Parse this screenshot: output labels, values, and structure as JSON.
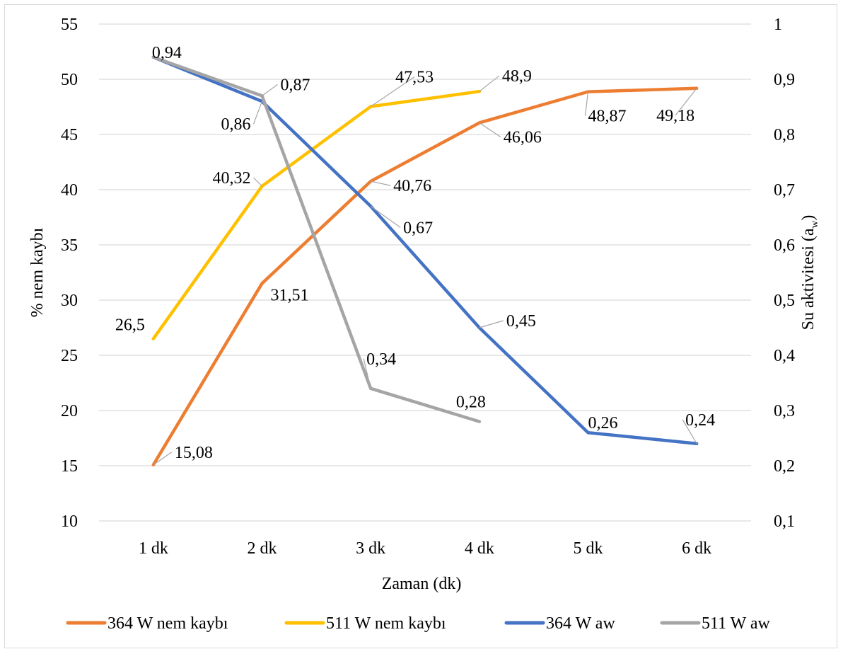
{
  "chart_data": {
    "type": "line",
    "categories": [
      "1 dk",
      "2 dk",
      "3 dk",
      "4 dk",
      "5 dk",
      "6 dk"
    ],
    "xlabel": "Zaman (dk)",
    "ylabel": "% nem kaybı",
    "y2label": "Su aktivitesi (aw)",
    "y2label_main": "Su aktivitesi (a",
    "y2label_sub": "w",
    "y2label_close": ")",
    "ylim": [
      10,
      55
    ],
    "y2lim": [
      0.1,
      1
    ],
    "yticks": [
      "10",
      "15",
      "20",
      "25",
      "30",
      "35",
      "40",
      "45",
      "50",
      "55"
    ],
    "y2ticks": [
      "0,1",
      "0,2",
      "0,3",
      "0,4",
      "0,5",
      "0,6",
      "0,7",
      "0,8",
      "0,9",
      "1"
    ],
    "grid": true,
    "legend_position": "bottom",
    "series": [
      {
        "name": "364 W nem kaybı",
        "axis": "left",
        "color": "#ED7D31",
        "values": [
          15.08,
          31.51,
          40.76,
          46.06,
          48.87,
          49.18
        ],
        "labels": [
          "15,08",
          "31,51",
          "40,76",
          "46,06",
          "48,87",
          "49,18"
        ]
      },
      {
        "name": "511 W nem kaybı",
        "axis": "left",
        "color": "#FFC000",
        "values": [
          26.5,
          40.32,
          47.53,
          48.9,
          null,
          null
        ],
        "labels": [
          "26,5",
          "40,32",
          "47,53",
          "48,9",
          null,
          null
        ]
      },
      {
        "name": "364 W aw",
        "axis": "right",
        "color": "#4472C4",
        "values": [
          0.94,
          0.86,
          0.67,
          0.45,
          0.26,
          0.24
        ],
        "labels": [
          "0,94",
          "0,86",
          "0,67",
          "0,45",
          "0,26",
          "0,24"
        ]
      },
      {
        "name": "511 W aw",
        "axis": "right",
        "color": "#A5A5A5",
        "values": [
          0.94,
          0.87,
          0.34,
          0.28,
          null,
          null
        ],
        "labels": [
          "0,94",
          "0,87",
          "0,34",
          "0,28",
          null,
          null
        ]
      }
    ]
  }
}
